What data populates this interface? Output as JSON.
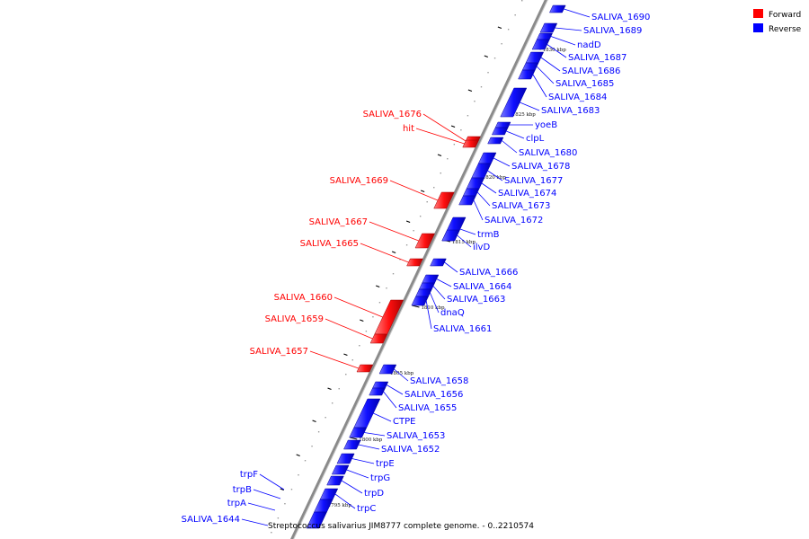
{
  "title": "Streptococcus salivarius JIM8777 complete genome. - 0..2210574",
  "legend": [
    {
      "label": "Forward",
      "color": "#ff0000"
    },
    {
      "label": "Reverse",
      "color": "#0000ff"
    }
  ],
  "colors": {
    "forward": "#ff0000",
    "reverse": "#0000ff",
    "backbone": "#888888"
  },
  "scale_ticks": [
    "1830 kbp",
    "1825 kbp",
    "1820 kbp",
    "1815 kbp",
    "1810 kbp",
    "1805 kbp",
    "1800 kbp",
    "1795 kbp"
  ],
  "reverse_genes": [
    "SALIVA_1690",
    "SALIVA_1689",
    "nadD",
    "SALIVA_1687",
    "SALIVA_1686",
    "SALIVA_1685",
    "SALIVA_1684",
    "SALIVA_1683",
    "yoeB",
    "clpL",
    "SALIVA_1680",
    "SALIVA_1678",
    "SALIVA_1677",
    "SALIVA_1674",
    "SALIVA_1673",
    "SALIVA_1672",
    "trmB",
    "ilvD",
    "SALIVA_1666",
    "SALIVA_1664",
    "SALIVA_1663",
    "dnaQ",
    "SALIVA_1661",
    "SALIVA_1658",
    "SALIVA_1656",
    "SALIVA_1655",
    "CTPE",
    "SALIVA_1653",
    "SALIVA_1652",
    "trpE",
    "trpG",
    "trpD",
    "trpC"
  ],
  "forward_genes": [
    "SALIVA_1676",
    "hit",
    "SALIVA_1669",
    "SALIVA_1667",
    "SALIVA_1665",
    "SALIVA_1660",
    "SALIVA_1659",
    "SALIVA_1657"
  ],
  "left_reverse_genes": [
    "trpF",
    "trpB",
    "trpA",
    "SALIVA_1644"
  ]
}
